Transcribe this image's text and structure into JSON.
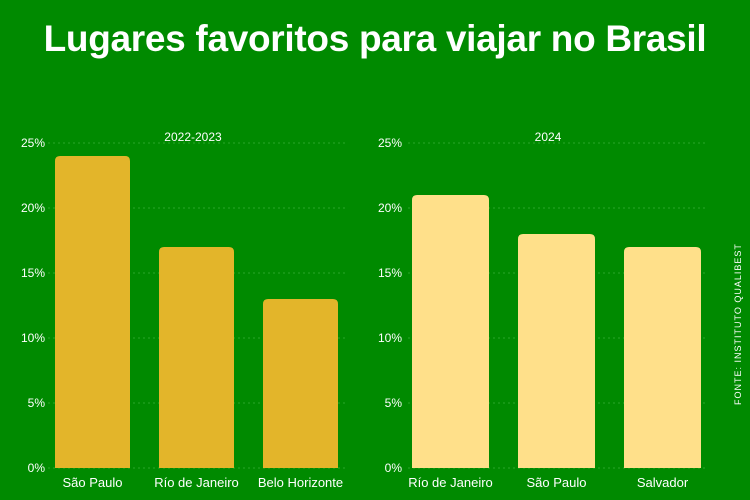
{
  "title": "Lugares favoritos para viajar no Brasil",
  "source": "FONTE: INSTITUTO QUALIBEST",
  "chart_data": [
    {
      "type": "bar",
      "title": "2022-2023",
      "categories": [
        "São Paulo",
        "Río de Janeiro",
        "Belo Horizonte"
      ],
      "values": [
        24,
        17,
        13
      ],
      "ylim": [
        0,
        25
      ],
      "yticks": [
        "0%",
        "5%",
        "10%",
        "15%",
        "20%",
        "25%"
      ],
      "color": "#e3b52a"
    },
    {
      "type": "bar",
      "title": "2024",
      "categories": [
        "Río de Janeiro",
        "São Paulo",
        "Salvador"
      ],
      "values": [
        21,
        18,
        17
      ],
      "ylim": [
        0,
        25
      ],
      "yticks": [
        "0%",
        "5%",
        "10%",
        "15%",
        "20%",
        "25%"
      ],
      "color": "#ffe08a"
    }
  ],
  "colors": {
    "background": "#008a00"
  }
}
